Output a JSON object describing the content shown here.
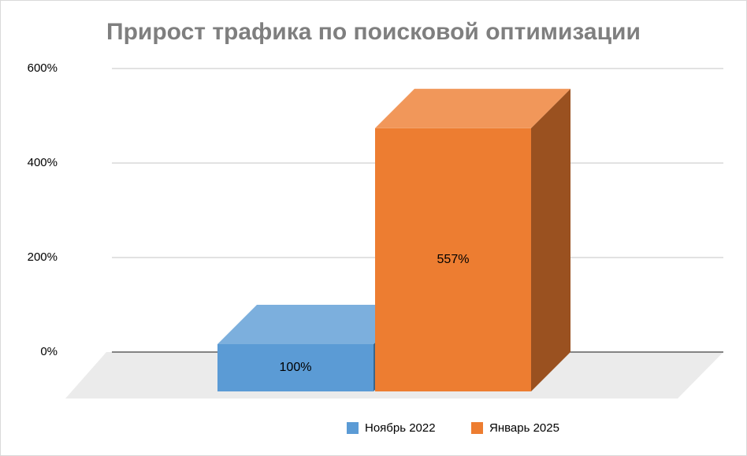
{
  "chart_data": {
    "type": "bar3d",
    "title": "Прирост трафика по поисковой оптимизации",
    "categories": [
      null
    ],
    "series": [
      {
        "name": "Ноябрь 2022",
        "color": "#5b9bd5",
        "values": [
          100
        ],
        "value_labels": [
          "100%"
        ]
      },
      {
        "name": "Январь 2025",
        "color": "#ed7d31",
        "values": [
          557
        ],
        "value_labels": [
          "557%"
        ]
      }
    ],
    "ylim": [
      0,
      600
    ],
    "yticks": [
      {
        "value": 0,
        "label": "0%"
      },
      {
        "value": 200,
        "label": "200%"
      },
      {
        "value": 400,
        "label": "400%"
      },
      {
        "value": 600,
        "label": "600%"
      }
    ],
    "grid": true
  }
}
